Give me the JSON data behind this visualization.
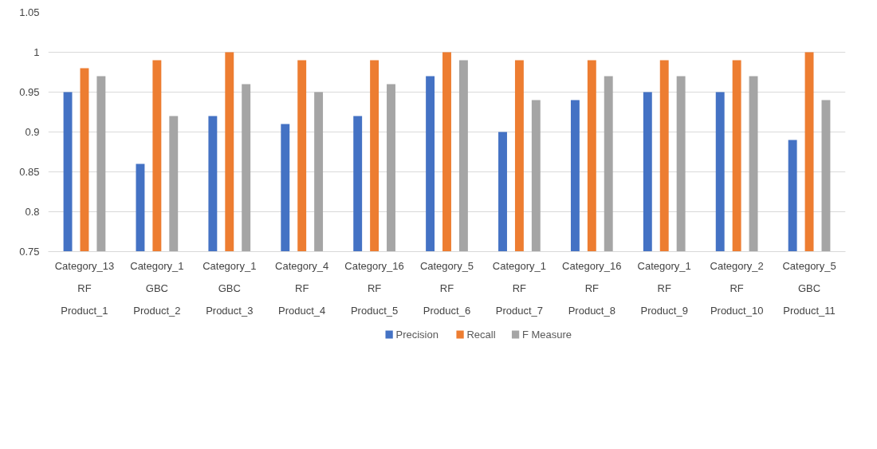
{
  "chart_data": {
    "type": "bar",
    "categories": [
      "Category_13\nRF\nProduct_1",
      "Category_1\nGBC\nProduct_2",
      "Category_1\nGBC\nProduct_3",
      "Category_4\nRF\nProduct_4",
      "Category_16\nRF\nProduct_5",
      "Category_5\nRF\nProduct_6",
      "Category_1\nRF\nProduct_7",
      "Category_16\nRF\nProduct_8",
      "Category_1\nRF\nProduct_9",
      "Category_2\nRF\nProduct_10",
      "Category_5\nGBC\nProduct_11"
    ],
    "series": [
      {
        "name": "Precision",
        "color": "#4472c4",
        "values": [
          0.95,
          0.86,
          0.92,
          0.91,
          0.92,
          0.97,
          0.9,
          0.94,
          0.95,
          0.95,
          0.89
        ]
      },
      {
        "name": "Recall",
        "color": "#ed7d31",
        "values": [
          0.98,
          0.99,
          1.0,
          0.99,
          0.99,
          1.0,
          0.99,
          0.99,
          0.99,
          0.99,
          1.0
        ]
      },
      {
        "name": "F Measure",
        "color": "#a5a5a5",
        "values": [
          0.97,
          0.92,
          0.96,
          0.95,
          0.96,
          0.99,
          0.94,
          0.97,
          0.97,
          0.97,
          0.94
        ]
      }
    ],
    "ylim": [
      0.75,
      1.05
    ],
    "yticks": [
      {
        "value": 0.75,
        "label": "0.75"
      },
      {
        "value": 0.8,
        "label": "0.8"
      },
      {
        "value": 0.85,
        "label": "0.85"
      },
      {
        "value": 0.9,
        "label": "0.9"
      },
      {
        "value": 0.95,
        "label": "0.95"
      },
      {
        "value": 1,
        "label": "1"
      },
      {
        "value": 1.05,
        "label": "1.05"
      }
    ],
    "grid": "y",
    "legend": "bottom"
  }
}
